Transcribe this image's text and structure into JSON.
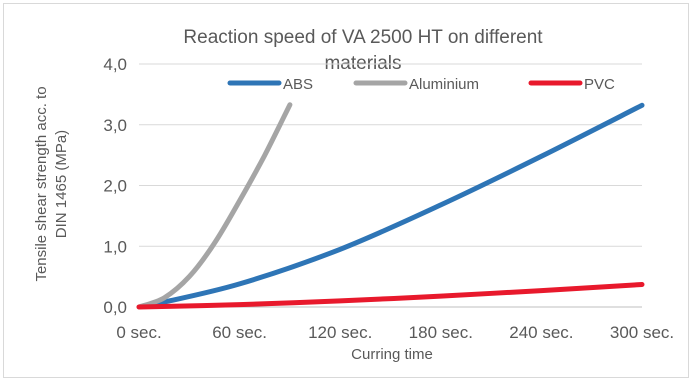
{
  "chart_data": {
    "type": "line",
    "title_line1": "Reaction speed of VA 2500 HT on different",
    "title_line2": "materials",
    "xlabel": "Curring time",
    "ylabel_line1": "Tensile shear strength acc. to",
    "ylabel_line2": "DIN 1465 (MPa)",
    "xlim": [
      0,
      300
    ],
    "ylim": [
      0,
      4
    ],
    "x_ticks": [
      0,
      60,
      120,
      180,
      240,
      300
    ],
    "x_tick_labels": [
      "0 sec.",
      "60 sec.",
      "120 sec.",
      "180 sec.",
      "240 sec.",
      "300 sec."
    ],
    "y_ticks": [
      0,
      1,
      2,
      3,
      4
    ],
    "y_tick_labels": [
      "0,0",
      "1,0",
      "2,0",
      "3,0",
      "4,0"
    ],
    "grid": true,
    "legend_position": "top",
    "series": [
      {
        "name": "ABS",
        "color": "#2e75b6",
        "x": [
          10,
          60,
          120,
          180,
          240,
          300
        ],
        "y": [
          0.05,
          0.38,
          0.95,
          1.68,
          2.48,
          3.32
        ]
      },
      {
        "name": "Aluminium",
        "color": "#a5a5a5",
        "x": [
          0,
          15,
          30,
          45,
          60,
          75,
          90
        ],
        "y": [
          0.0,
          0.15,
          0.5,
          1.05,
          1.75,
          2.5,
          3.33
        ]
      },
      {
        "name": "PVC",
        "color": "#e8192c",
        "x": [
          0,
          60,
          120,
          180,
          240,
          300
        ],
        "y": [
          0.0,
          0.04,
          0.1,
          0.18,
          0.27,
          0.37
        ]
      }
    ]
  }
}
